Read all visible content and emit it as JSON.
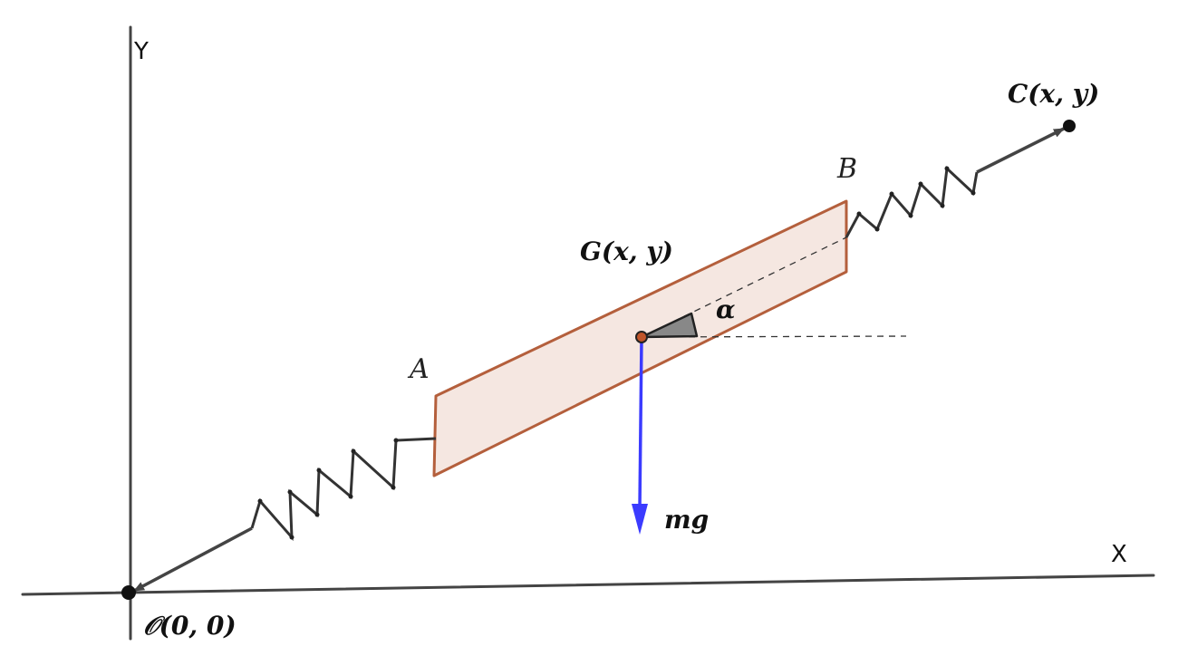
{
  "axes": {
    "x_label": "X",
    "y_label": "Y"
  },
  "points": {
    "origin": "𝒪(0, 0)",
    "center_of_mass": "G(x, y)",
    "anchor_c": "C(x, y)",
    "end_a": "A",
    "end_b": "B"
  },
  "annotations": {
    "angle": "α",
    "weight": "mg"
  },
  "colors": {
    "axis": "#444444",
    "body_stroke": "#b45f3c",
    "body_fill": "#f5e7e1",
    "gravity_vector": "#3b3bff",
    "spring": "#333333",
    "center_point": "#c0552a",
    "angle_fill": "#888888"
  }
}
